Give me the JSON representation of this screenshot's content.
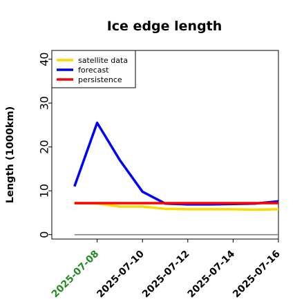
{
  "chart_data": {
    "type": "line",
    "title": "Ice edge length",
    "xlabel": "",
    "ylabel": "Length (1000km)",
    "x": [
      "2025-07-07",
      "2025-07-08",
      "2025-07-09",
      "2025-07-10",
      "2025-07-11",
      "2025-07-12",
      "2025-07-13",
      "2025-07-14",
      "2025-07-15",
      "2025-07-16"
    ],
    "xticks": [
      "2025-07-08",
      "2025-07-10",
      "2025-07-12",
      "2025-07-14",
      "2025-07-16"
    ],
    "highlighted_xtick": "2025-07-08",
    "yticks": [
      0,
      10,
      20,
      30,
      40
    ],
    "ylim": [
      -1,
      42
    ],
    "xlim": [
      "2025-07-06",
      "2025-07-16"
    ],
    "grid": false,
    "legend_position": "top-left",
    "series": [
      {
        "name": "satellite data",
        "color": "#FFD700",
        "values": [
          7.2,
          7.1,
          6.4,
          6.4,
          5.9,
          5.8,
          5.8,
          5.8,
          5.7,
          5.8
        ]
      },
      {
        "name": "forecast",
        "color": "#0000FF",
        "values": [
          11.0,
          25.5,
          17.0,
          9.8,
          7.1,
          6.9,
          6.9,
          7.0,
          7.1,
          7.6
        ]
      },
      {
        "name": "persistence",
        "color": "#FF0000",
        "values": [
          7.2,
          7.2,
          7.2,
          7.2,
          7.2,
          7.2,
          7.2,
          7.2,
          7.2,
          7.2
        ]
      }
    ],
    "reference_line": {
      "value": 0,
      "color": "#808080"
    },
    "colors": {
      "tick_text": "#000000",
      "highlight_tick_text": "#228B22"
    }
  }
}
